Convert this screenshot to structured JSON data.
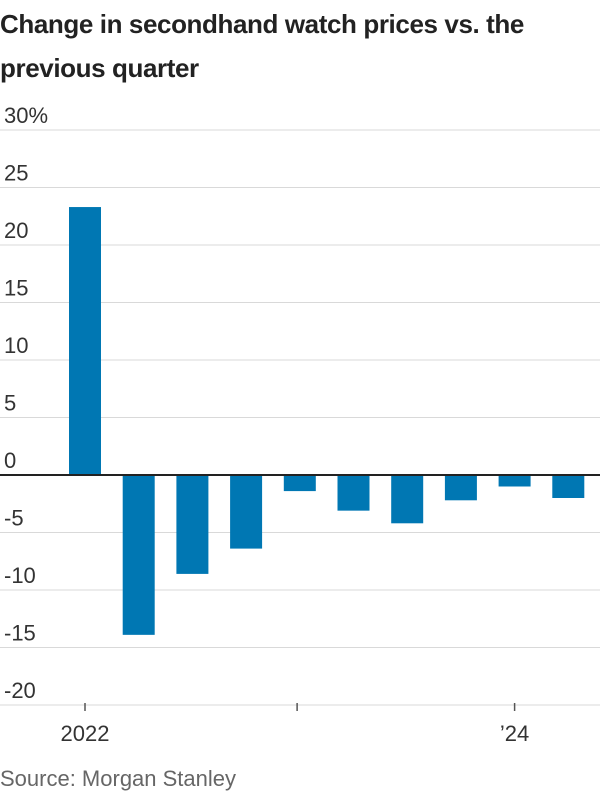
{
  "title": "Change in secondhand watch prices vs. the previous quarter",
  "source": "Source: Morgan Stanley",
  "chart_data": {
    "type": "bar",
    "title": "Change in secondhand watch prices vs. the previous quarter",
    "xlabel": "",
    "ylabel": "",
    "ylim": [
      -20,
      30
    ],
    "yticks": [
      30,
      25,
      20,
      15,
      10,
      5,
      0,
      -5,
      -10,
      -15,
      -20
    ],
    "ytick_labels": [
      "30%",
      "25",
      "20",
      "15",
      "10",
      "5",
      "0",
      "-5",
      "-10",
      "-15",
      "-20"
    ],
    "x_tick_labels": [
      "2022",
      "",
      "’24"
    ],
    "grid": true,
    "bar_color": "#0077b3",
    "values": [
      23.3,
      -13.9,
      -8.6,
      -6.4,
      -1.4,
      -3.1,
      -4.2,
      -2.2,
      -1.0,
      -2.0
    ]
  }
}
